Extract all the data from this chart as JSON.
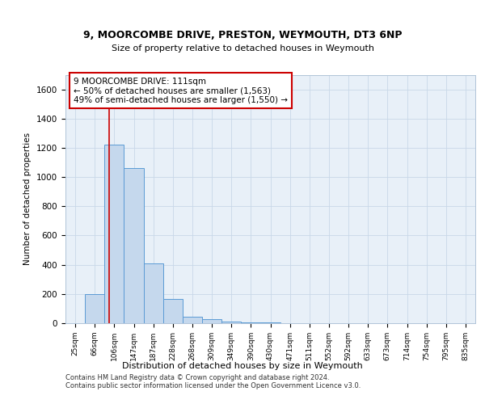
{
  "title_line1": "9, MOORCOMBE DRIVE, PRESTON, WEYMOUTH, DT3 6NP",
  "title_line2": "Size of property relative to detached houses in Weymouth",
  "xlabel": "Distribution of detached houses by size in Weymouth",
  "ylabel": "Number of detached properties",
  "categories": [
    "25sqm",
    "66sqm",
    "106sqm",
    "147sqm",
    "187sqm",
    "228sqm",
    "268sqm",
    "309sqm",
    "349sqm",
    "390sqm",
    "430sqm",
    "471sqm",
    "511sqm",
    "552sqm",
    "592sqm",
    "633sqm",
    "673sqm",
    "714sqm",
    "754sqm",
    "795sqm",
    "835sqm"
  ],
  "values": [
    0,
    200,
    1220,
    1060,
    410,
    165,
    45,
    25,
    10,
    5,
    5,
    0,
    0,
    0,
    0,
    0,
    0,
    0,
    0,
    0,
    0
  ],
  "bar_color": "#c5d8ed",
  "bar_edge_color": "#5b9bd5",
  "annotation_text": "9 MOORCOMBE DRIVE: 111sqm\n← 50% of detached houses are smaller (1,563)\n49% of semi-detached houses are larger (1,550) →",
  "annotation_box_color": "#ffffff",
  "annotation_box_edge_color": "#cc0000",
  "vline_color": "#cc0000",
  "vline_x": 1.72,
  "ylim": [
    0,
    1700
  ],
  "yticks": [
    0,
    200,
    400,
    600,
    800,
    1000,
    1200,
    1400,
    1600
  ],
  "plot_background_color": "#e8f0f8",
  "grid_color": "#c8d8e8",
  "footer_line1": "Contains HM Land Registry data © Crown copyright and database right 2024.",
  "footer_line2": "Contains public sector information licensed under the Open Government Licence v3.0."
}
